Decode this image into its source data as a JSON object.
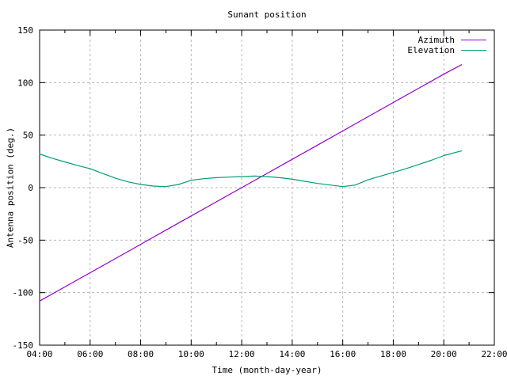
{
  "chart_data": {
    "type": "line",
    "title": "Sunant position",
    "xlabel": "Time (month-day-year)",
    "ylabel": "Antenna position (deg.)",
    "xlim": [
      4,
      22
    ],
    "ylim": [
      -150,
      150
    ],
    "grid": true,
    "legend_position": "top-right-inside",
    "xticks": {
      "values": [
        4,
        6,
        8,
        10,
        12,
        14,
        16,
        18,
        20,
        22
      ],
      "labels": [
        "04:00",
        "06:00",
        "08:00",
        "10:00",
        "12:00",
        "14:00",
        "16:00",
        "18:00",
        "20:00",
        "22:00"
      ]
    },
    "minor_xticks": [
      5,
      7,
      9,
      11,
      13,
      15,
      17,
      19,
      21
    ],
    "yticks": {
      "values": [
        -150,
        -100,
        -50,
        0,
        50,
        100,
        150
      ],
      "labels": [
        "-150",
        "-100",
        "-50",
        "0",
        "50",
        "100",
        "150"
      ]
    },
    "colors": {
      "grid": "#b8b8b8",
      "border": "#000000",
      "background": "#ffffff"
    },
    "series": [
      {
        "name": "Azimuth",
        "color": "#9400d3",
        "x": [
          4,
          5,
          6,
          7,
          8,
          9,
          10,
          11,
          12,
          13,
          14,
          15,
          16,
          17,
          18,
          19,
          20,
          20.7
        ],
        "y": [
          -108,
          -94.5,
          -81,
          -67.5,
          -54,
          -40.5,
          -27,
          -13.5,
          0,
          13.5,
          27,
          40.5,
          54,
          67.5,
          81,
          94.5,
          108,
          117
        ]
      },
      {
        "name": "Elevation",
        "color": "#009e73",
        "x": [
          4,
          4.5,
          5,
          5.5,
          6,
          6.5,
          7,
          7.5,
          8,
          8.5,
          9,
          9.5,
          10,
          10.5,
          11,
          11.5,
          12,
          12.5,
          13,
          13.5,
          14,
          14.5,
          15,
          15.5,
          16,
          16.5,
          17,
          17.5,
          18,
          18.5,
          19,
          19.5,
          20,
          20.7
        ],
        "y": [
          32,
          28,
          24.5,
          21,
          18,
          13.5,
          9,
          5.5,
          3,
          1.5,
          1,
          3,
          7,
          8.5,
          9.5,
          10,
          10.5,
          11,
          10.5,
          9.5,
          8,
          6,
          4,
          2.5,
          1,
          2.5,
          7.5,
          11,
          14.5,
          18,
          22,
          26,
          30.5,
          35
        ]
      }
    ]
  }
}
